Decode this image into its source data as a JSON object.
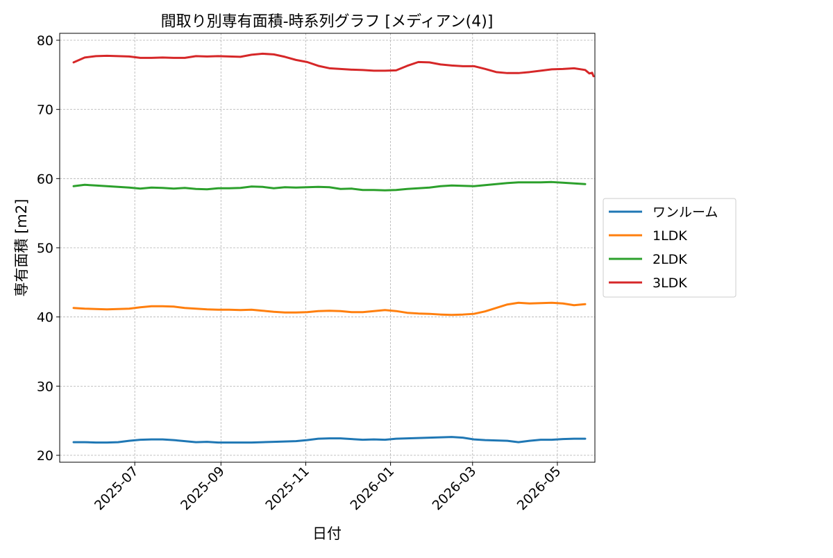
{
  "chart_data": {
    "type": "line",
    "title": "間取り別専有面積-時系列グラフ [メディアン(4)]",
    "xlabel": "日付",
    "ylabel": "専有面積 [m2]",
    "xlim": [
      "2025-05-08",
      "2026-05-28"
    ],
    "ylim": [
      19,
      81
    ],
    "y_ticks": [
      20,
      30,
      40,
      50,
      60,
      70,
      80
    ],
    "x_ticks": [
      "2025-07",
      "2025-09",
      "2025-11",
      "2026-01",
      "2026-03",
      "2026-05"
    ],
    "x_tick_dates": [
      "2025-07-01",
      "2025-09-01",
      "2025-11-01",
      "2026-01-01",
      "2026-03-01",
      "2026-05-01"
    ],
    "grid": true,
    "legend_position": "right, outside plot",
    "series": [
      {
        "name": "ワンルーム",
        "color": "#1f77b4",
        "points": [
          [
            "2025-05-18",
            21.9
          ],
          [
            "2025-05-26",
            21.9
          ],
          [
            "2025-06-03",
            21.85
          ],
          [
            "2025-06-11",
            21.85
          ],
          [
            "2025-06-19",
            21.9
          ],
          [
            "2025-06-27",
            22.1
          ],
          [
            "2025-07-05",
            22.25
          ],
          [
            "2025-07-13",
            22.3
          ],
          [
            "2025-07-21",
            22.3
          ],
          [
            "2025-07-29",
            22.2
          ],
          [
            "2025-08-06",
            22.05
          ],
          [
            "2025-08-14",
            21.9
          ],
          [
            "2025-08-22",
            21.95
          ],
          [
            "2025-08-30",
            21.85
          ],
          [
            "2025-09-07",
            21.85
          ],
          [
            "2025-09-15",
            21.85
          ],
          [
            "2025-09-23",
            21.85
          ],
          [
            "2025-10-01",
            21.9
          ],
          [
            "2025-10-09",
            21.95
          ],
          [
            "2025-10-17",
            22.0
          ],
          [
            "2025-10-25",
            22.05
          ],
          [
            "2025-11-02",
            22.2
          ],
          [
            "2025-11-10",
            22.4
          ],
          [
            "2025-11-18",
            22.45
          ],
          [
            "2025-11-26",
            22.45
          ],
          [
            "2025-12-04",
            22.35
          ],
          [
            "2025-12-12",
            22.25
          ],
          [
            "2025-12-20",
            22.3
          ],
          [
            "2025-12-28",
            22.25
          ],
          [
            "2026-01-05",
            22.4
          ],
          [
            "2026-01-13",
            22.45
          ],
          [
            "2026-01-21",
            22.5
          ],
          [
            "2026-01-29",
            22.55
          ],
          [
            "2026-02-06",
            22.6
          ],
          [
            "2026-02-14",
            22.65
          ],
          [
            "2026-02-22",
            22.55
          ],
          [
            "2026-03-02",
            22.3
          ],
          [
            "2026-03-10",
            22.2
          ],
          [
            "2026-03-18",
            22.15
          ],
          [
            "2026-03-26",
            22.1
          ],
          [
            "2026-04-03",
            21.9
          ],
          [
            "2026-04-11",
            22.1
          ],
          [
            "2026-04-19",
            22.25
          ],
          [
            "2026-04-27",
            22.25
          ],
          [
            "2026-05-05",
            22.35
          ],
          [
            "2026-05-13",
            22.4
          ],
          [
            "2026-05-21",
            22.4
          ]
        ]
      },
      {
        "name": "1LDK",
        "color": "#ff7f0e",
        "points": [
          [
            "2025-05-18",
            41.3
          ],
          [
            "2025-05-26",
            41.2
          ],
          [
            "2025-06-03",
            41.15
          ],
          [
            "2025-06-11",
            41.1
          ],
          [
            "2025-06-19",
            41.15
          ],
          [
            "2025-06-27",
            41.2
          ],
          [
            "2025-07-05",
            41.4
          ],
          [
            "2025-07-13",
            41.55
          ],
          [
            "2025-07-21",
            41.55
          ],
          [
            "2025-07-29",
            41.5
          ],
          [
            "2025-08-06",
            41.3
          ],
          [
            "2025-08-14",
            41.2
          ],
          [
            "2025-08-22",
            41.1
          ],
          [
            "2025-08-30",
            41.05
          ],
          [
            "2025-09-07",
            41.05
          ],
          [
            "2025-09-15",
            41.0
          ],
          [
            "2025-09-23",
            41.05
          ],
          [
            "2025-10-01",
            40.9
          ],
          [
            "2025-10-09",
            40.75
          ],
          [
            "2025-10-17",
            40.65
          ],
          [
            "2025-10-25",
            40.65
          ],
          [
            "2025-11-02",
            40.7
          ],
          [
            "2025-11-10",
            40.85
          ],
          [
            "2025-11-18",
            40.9
          ],
          [
            "2025-11-26",
            40.85
          ],
          [
            "2025-12-04",
            40.7
          ],
          [
            "2025-12-12",
            40.7
          ],
          [
            "2025-12-20",
            40.85
          ],
          [
            "2025-12-28",
            41.0
          ],
          [
            "2026-01-05",
            40.85
          ],
          [
            "2026-01-13",
            40.6
          ],
          [
            "2026-01-21",
            40.5
          ],
          [
            "2026-01-29",
            40.45
          ],
          [
            "2026-02-06",
            40.35
          ],
          [
            "2026-02-14",
            40.3
          ],
          [
            "2026-02-22",
            40.35
          ],
          [
            "2026-03-02",
            40.45
          ],
          [
            "2026-03-10",
            40.8
          ],
          [
            "2026-03-18",
            41.3
          ],
          [
            "2026-03-26",
            41.8
          ],
          [
            "2026-04-03",
            42.05
          ],
          [
            "2026-04-11",
            41.95
          ],
          [
            "2026-04-19",
            42.0
          ],
          [
            "2026-04-27",
            42.05
          ],
          [
            "2026-05-05",
            41.95
          ],
          [
            "2026-05-13",
            41.7
          ],
          [
            "2026-05-21",
            41.85
          ]
        ]
      },
      {
        "name": "2LDK",
        "color": "#2ca02c",
        "points": [
          [
            "2025-05-18",
            58.9
          ],
          [
            "2025-05-26",
            59.1
          ],
          [
            "2025-06-03",
            59.0
          ],
          [
            "2025-06-11",
            58.9
          ],
          [
            "2025-06-19",
            58.8
          ],
          [
            "2025-06-27",
            58.7
          ],
          [
            "2025-07-05",
            58.55
          ],
          [
            "2025-07-13",
            58.7
          ],
          [
            "2025-07-21",
            58.65
          ],
          [
            "2025-07-29",
            58.55
          ],
          [
            "2025-08-06",
            58.65
          ],
          [
            "2025-08-14",
            58.5
          ],
          [
            "2025-08-22",
            58.45
          ],
          [
            "2025-08-30",
            58.6
          ],
          [
            "2025-09-07",
            58.6
          ],
          [
            "2025-09-15",
            58.65
          ],
          [
            "2025-09-23",
            58.85
          ],
          [
            "2025-10-01",
            58.8
          ],
          [
            "2025-10-09",
            58.6
          ],
          [
            "2025-10-17",
            58.75
          ],
          [
            "2025-10-25",
            58.7
          ],
          [
            "2025-11-02",
            58.75
          ],
          [
            "2025-11-10",
            58.8
          ],
          [
            "2025-11-18",
            58.75
          ],
          [
            "2025-11-26",
            58.5
          ],
          [
            "2025-12-04",
            58.55
          ],
          [
            "2025-12-12",
            58.35
          ],
          [
            "2025-12-20",
            58.35
          ],
          [
            "2025-12-28",
            58.3
          ],
          [
            "2026-01-05",
            58.35
          ],
          [
            "2026-01-13",
            58.5
          ],
          [
            "2026-01-21",
            58.6
          ],
          [
            "2026-01-29",
            58.7
          ],
          [
            "2026-02-06",
            58.9
          ],
          [
            "2026-02-14",
            59.0
          ],
          [
            "2026-02-22",
            58.95
          ],
          [
            "2026-03-02",
            58.9
          ],
          [
            "2026-03-10",
            59.05
          ],
          [
            "2026-03-18",
            59.2
          ],
          [
            "2026-03-26",
            59.35
          ],
          [
            "2026-04-03",
            59.45
          ],
          [
            "2026-04-11",
            59.45
          ],
          [
            "2026-04-19",
            59.45
          ],
          [
            "2026-04-27",
            59.5
          ],
          [
            "2026-05-05",
            59.4
          ],
          [
            "2026-05-13",
            59.3
          ],
          [
            "2026-05-21",
            59.2
          ]
        ]
      },
      {
        "name": "3LDK",
        "color": "#d62728",
        "points": [
          [
            "2025-05-18",
            76.8
          ],
          [
            "2025-05-26",
            77.5
          ],
          [
            "2025-06-03",
            77.7
          ],
          [
            "2025-06-11",
            77.75
          ],
          [
            "2025-06-19",
            77.7
          ],
          [
            "2025-06-27",
            77.65
          ],
          [
            "2025-07-05",
            77.45
          ],
          [
            "2025-07-13",
            77.45
          ],
          [
            "2025-07-21",
            77.5
          ],
          [
            "2025-07-29",
            77.45
          ],
          [
            "2025-08-06",
            77.45
          ],
          [
            "2025-08-14",
            77.7
          ],
          [
            "2025-08-22",
            77.65
          ],
          [
            "2025-08-30",
            77.7
          ],
          [
            "2025-09-07",
            77.65
          ],
          [
            "2025-09-15",
            77.6
          ],
          [
            "2025-09-23",
            77.9
          ],
          [
            "2025-10-01",
            78.05
          ],
          [
            "2025-10-09",
            77.95
          ],
          [
            "2025-10-17",
            77.6
          ],
          [
            "2025-10-25",
            77.15
          ],
          [
            "2025-11-02",
            76.85
          ],
          [
            "2025-11-10",
            76.3
          ],
          [
            "2025-11-18",
            75.95
          ],
          [
            "2025-11-26",
            75.85
          ],
          [
            "2025-12-04",
            75.75
          ],
          [
            "2025-12-12",
            75.7
          ],
          [
            "2025-12-20",
            75.6
          ],
          [
            "2025-12-28",
            75.6
          ],
          [
            "2026-01-05",
            75.65
          ],
          [
            "2026-01-13",
            76.3
          ],
          [
            "2026-01-21",
            76.85
          ],
          [
            "2026-01-29",
            76.8
          ],
          [
            "2026-02-06",
            76.5
          ],
          [
            "2026-02-14",
            76.35
          ],
          [
            "2026-02-22",
            76.25
          ],
          [
            "2026-03-02",
            76.25
          ],
          [
            "2026-03-10",
            75.85
          ],
          [
            "2026-03-18",
            75.4
          ],
          [
            "2026-03-26",
            75.25
          ],
          [
            "2026-04-03",
            75.25
          ],
          [
            "2026-04-11",
            75.4
          ],
          [
            "2026-04-19",
            75.6
          ],
          [
            "2026-04-27",
            75.8
          ],
          [
            "2026-05-05",
            75.85
          ],
          [
            "2026-05-13",
            75.95
          ],
          [
            "2026-05-21",
            75.7
          ],
          [
            "2026-05-24",
            75.2
          ],
          [
            "2026-05-26",
            75.3
          ],
          [
            "2026-05-27",
            74.8
          ]
        ]
      }
    ]
  }
}
